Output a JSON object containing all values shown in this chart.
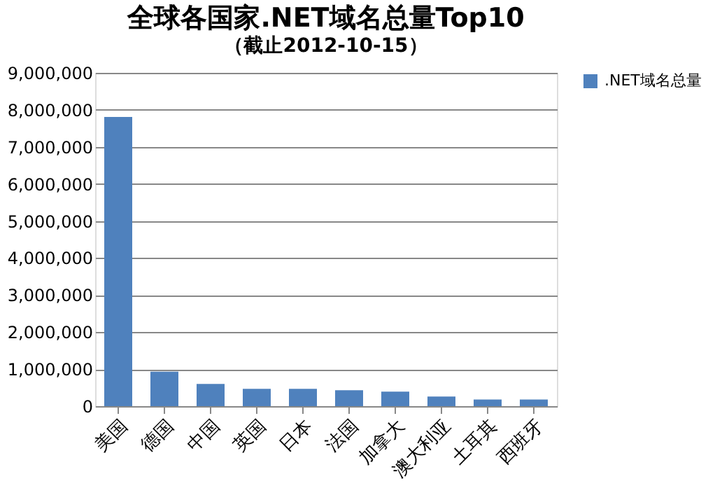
{
  "chart_data": {
    "type": "bar",
    "title": "全球各国家.NET域名总量Top10",
    "subtitle": "（截止2012-10-15）",
    "categories": [
      "美国",
      "德国",
      "中国",
      "英国",
      "日本",
      "法国",
      "加拿大",
      "澳大利亚",
      "土耳其",
      "西班牙"
    ],
    "series": [
      {
        "name": ".NET域名总量",
        "color": "#4f81bd",
        "values": [
          7810000,
          930000,
          600000,
          470000,
          470000,
          430000,
          390000,
          260000,
          180000,
          180000
        ]
      }
    ],
    "ylim": [
      0,
      9000000
    ],
    "yticks": [
      0,
      {
        "value": 1000000,
        "label": "1,000,000"
      },
      {
        "value": 2000000,
        "label": "2,000,000"
      },
      {
        "value": 3000000,
        "label": "3,000,000"
      },
      {
        "value": 4000000,
        "label": "4,000,000"
      },
      {
        "value": 5000000,
        "label": "5,000,000"
      },
      {
        "value": 6000000,
        "label": "6,000,000"
      },
      {
        "value": 7000000,
        "label": "7,000,000"
      },
      {
        "value": 8000000,
        "label": "8,000,000"
      },
      {
        "value": 9000000,
        "label": "9,000,000"
      }
    ],
    "grid": "y",
    "legend": "right"
  }
}
